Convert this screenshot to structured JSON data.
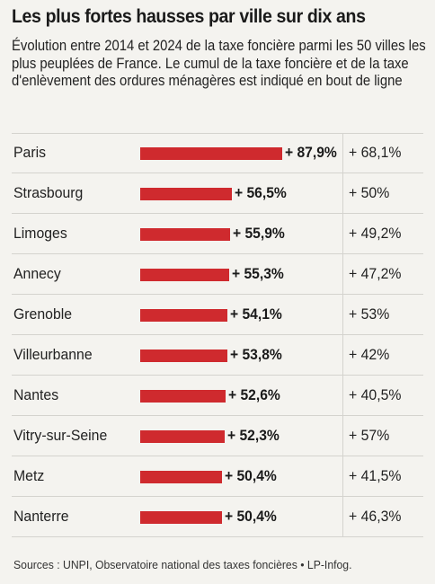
{
  "title": "Les plus fortes hausses par ville sur dix ans",
  "subtitle": "Évolution entre 2014 et 2024 de la taxe foncière parmi les 50 villes les plus peuplées de France. Le cumul de la taxe foncière et de la taxe d'enlèvement des ordures ménagères est indiqué en bout de ligne",
  "source": "Sources : UNPI, Observatoire national des taxes foncières • LP-Infog.",
  "colors": {
    "bar": "#cf2a2e",
    "background": "#f4f3ef"
  },
  "chart_data": {
    "type": "bar",
    "orientation": "horizontal",
    "categories": [
      "Paris",
      "Strasbourg",
      "Limoges",
      "Annecy",
      "Grenoble",
      "Villeurbanne",
      "Nantes",
      "Vitry-sur-Seine",
      "Metz",
      "Nanterre"
    ],
    "series": [
      {
        "values": [
          87.9,
          56.5,
          55.9,
          55.3,
          54.1,
          53.8,
          52.6,
          52.3,
          50.4,
          50.4
        ],
        "labels": [
          "+ 87,9%",
          "+ 56,5%",
          "+ 55,9%",
          "+ 55,3%",
          "+ 54,1%",
          "+ 53,8%",
          "+ 52,6%",
          "+ 52,3%",
          "+ 50,4%",
          "+ 50,4%"
        ]
      },
      {
        "values": [
          68.1,
          50,
          49.2,
          47.2,
          53,
          42,
          40.5,
          57,
          41.5,
          46.3
        ],
        "labels": [
          "+ 68,1%",
          "+ 50%",
          "+ 49,2%",
          "+ 47,2%",
          "+ 53%",
          "+ 42%",
          "+ 40,5%",
          "+ 57%",
          "+ 41,5%",
          "+ 46,3%"
        ]
      }
    ],
    "xlim": [
      0,
      87.9
    ],
    "grid": false,
    "legend": "none"
  }
}
